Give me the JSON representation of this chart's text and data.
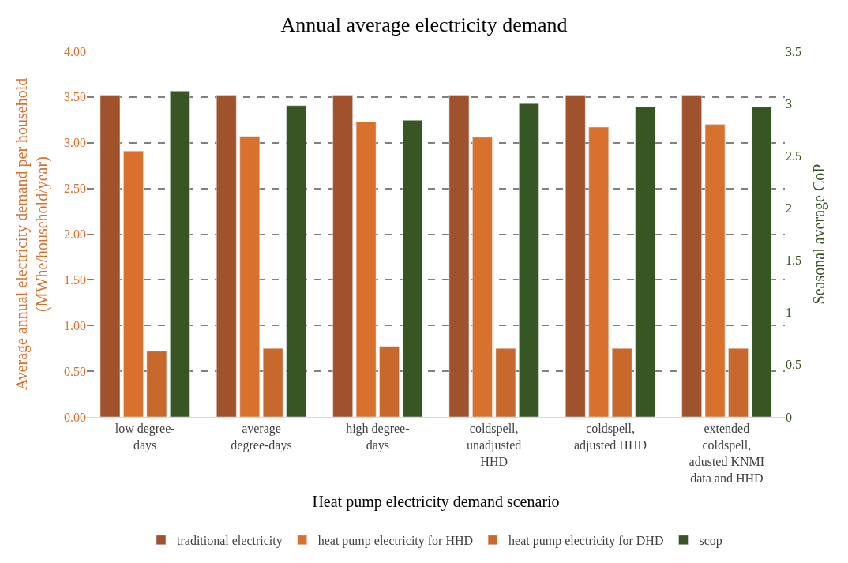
{
  "chart_data": {
    "type": "bar",
    "title": "Annual average electricity demand",
    "xlabel": "Heat pump electricity demand scenario",
    "ylabel": "Average annual electricity demand per household\n(MWhe/household/year)",
    "y2label": "Seasonal average CoP",
    "categories": [
      "low degree-days",
      "average degree-days",
      "high degree-days",
      "coldspell, unadjusted HHD",
      "coldspell, adjusted HHD",
      "extended coldspell, adusted KNMI data and HHD"
    ],
    "series": [
      {
        "name": "traditional electricity",
        "color": "#a0522d",
        "values": [
          3.52,
          3.52,
          3.52,
          3.52,
          3.52,
          3.52
        ]
      },
      {
        "name": "heat pump electricity for HHD",
        "color": "#d9712e",
        "values": [
          2.91,
          3.07,
          3.23,
          3.06,
          3.17,
          3.2
        ]
      },
      {
        "name": "heat pump electricity for DHD",
        "color": "#c8682c",
        "values": [
          0.72,
          0.75,
          0.77,
          0.75,
          0.75,
          0.75
        ]
      },
      {
        "name": "scop",
        "color": "#375623",
        "axis": "y2",
        "values": [
          3.12,
          2.98,
          2.84,
          3.0,
          2.97,
          2.97
        ]
      }
    ],
    "ylim": [
      0,
      4
    ],
    "yticks": [
      {
        "value": 0,
        "label": "0.00"
      },
      {
        "value": 0.5,
        "label": "0.50"
      },
      {
        "value": 1,
        "label": "1.00"
      },
      {
        "value": 1.5,
        "label": "1.50"
      },
      {
        "value": 2,
        "label": "2.00"
      },
      {
        "value": 2.5,
        "label": "2.50"
      },
      {
        "value": 3,
        "label": "3.00"
      },
      {
        "value": 3.5,
        "label": "3.50"
      },
      {
        "value": 4,
        "label": "4.00"
      }
    ],
    "y2lim": [
      0,
      3.5
    ],
    "y2ticks": [
      0,
      0.5,
      1,
      1.5,
      2,
      2.5,
      3,
      3.5
    ],
    "grid": "y",
    "legend": "bottom"
  }
}
